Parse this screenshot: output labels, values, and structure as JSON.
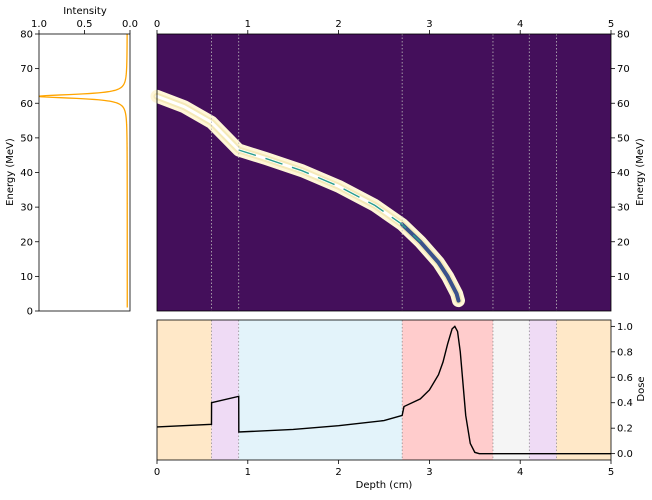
{
  "chart_data": [
    {
      "type": "line",
      "panel": "intensity-spectrum",
      "xlabel": "Intensity",
      "ylabel": "Energy (MeV)",
      "xlim": [
        1.0,
        0.0
      ],
      "ylim": [
        0,
        80
      ],
      "xticks": [
        "1.0",
        "0.5",
        "0.0"
      ],
      "xtick_values": [
        1.0,
        0.5,
        0.0
      ],
      "yticks": [
        "0",
        "10",
        "20",
        "30",
        "40",
        "50",
        "60",
        "70",
        "80"
      ],
      "ytick_values": [
        0,
        10,
        20,
        30,
        40,
        50,
        60,
        70,
        80
      ],
      "series": [
        {
          "color": "#ffa500",
          "peak_energy": 62,
          "peak_intensity": 1.0,
          "baseline_intensity": 0.03,
          "width": 0.7
        }
      ]
    },
    {
      "type": "heatmap",
      "panel": "energy-depth-map",
      "ylabel": "Energy (MeV)",
      "xlim": [
        0,
        5
      ],
      "ylim": [
        0,
        80
      ],
      "xticks": [
        "0",
        "1",
        "2",
        "3",
        "4",
        "5"
      ],
      "xtick_values": [
        0,
        1,
        2,
        3,
        4,
        5
      ],
      "yticks": [
        "10",
        "20",
        "30",
        "40",
        "50",
        "60",
        "70",
        "80"
      ],
      "ytick_values": [
        10,
        20,
        30,
        40,
        50,
        60,
        70,
        80
      ],
      "background_color": "#440f5b",
      "boundaries": [
        0.6,
        0.9,
        2.7,
        3.7,
        4.1,
        4.4
      ],
      "band_center": [
        [
          0.0,
          62
        ],
        [
          0.3,
          59
        ],
        [
          0.6,
          54.5
        ],
        [
          0.9,
          46.5
        ],
        [
          1.2,
          44
        ],
        [
          1.6,
          40.5
        ],
        [
          2.0,
          36
        ],
        [
          2.4,
          30.5
        ],
        [
          2.7,
          25
        ],
        [
          2.9,
          20
        ],
        [
          3.1,
          14
        ],
        [
          3.2,
          10
        ],
        [
          3.3,
          5
        ],
        [
          3.32,
          3
        ]
      ],
      "band_color": "#fdf6e0",
      "ridge_color": "#2a9d8f"
    },
    {
      "type": "line",
      "panel": "dose-profile",
      "xlabel": "Depth (cm)",
      "ylabel": "Dose",
      "xlim": [
        0,
        5
      ],
      "ylim": [
        -0.05,
        1.05
      ],
      "xticks": [
        "0",
        "1",
        "2",
        "3",
        "4",
        "5"
      ],
      "xtick_values": [
        0,
        1,
        2,
        3,
        4,
        5
      ],
      "yticks": [
        "0.0",
        "0.2",
        "0.4",
        "0.6",
        "0.8",
        "1.0"
      ],
      "ytick_values": [
        0.0,
        0.2,
        0.4,
        0.6,
        0.8,
        1.0
      ],
      "regions": [
        {
          "from": 0.0,
          "to": 0.6,
          "color": "#ffe8c8"
        },
        {
          "from": 0.6,
          "to": 0.9,
          "color": "#efdbf5"
        },
        {
          "from": 0.9,
          "to": 2.7,
          "color": "#e3f3fa"
        },
        {
          "from": 2.7,
          "to": 3.7,
          "color": "#ffcccc"
        },
        {
          "from": 3.7,
          "to": 4.1,
          "color": "#f5f5f5"
        },
        {
          "from": 4.1,
          "to": 4.4,
          "color": "#efdbf5"
        },
        {
          "from": 4.4,
          "to": 5.0,
          "color": "#ffe8c8"
        }
      ],
      "series": [
        {
          "color": "#000000",
          "x": [
            0.0,
            0.6,
            0.601,
            0.9,
            0.901,
            1.5,
            2.0,
            2.5,
            2.7,
            2.72,
            2.9,
            3.0,
            3.1,
            3.15,
            3.2,
            3.25,
            3.28,
            3.31,
            3.34,
            3.37,
            3.4,
            3.45,
            3.5,
            3.55,
            5.0
          ],
          "y": [
            0.21,
            0.23,
            0.4,
            0.45,
            0.17,
            0.19,
            0.22,
            0.26,
            0.3,
            0.37,
            0.43,
            0.5,
            0.62,
            0.72,
            0.86,
            0.98,
            1.0,
            0.96,
            0.8,
            0.55,
            0.3,
            0.08,
            0.01,
            0.0,
            0.0
          ]
        }
      ]
    }
  ]
}
